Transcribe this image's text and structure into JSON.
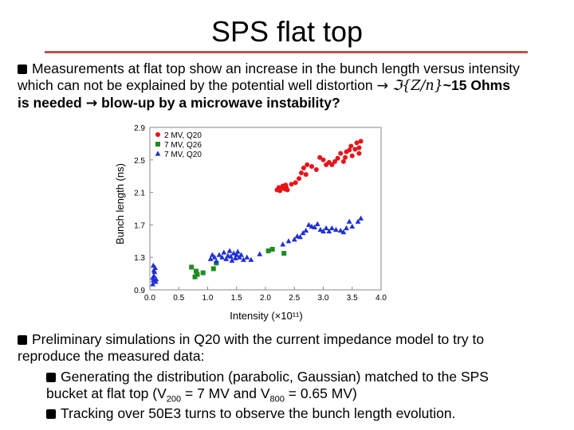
{
  "slide": {
    "title": "SPS flat top",
    "bullet1": {
      "line1": "Measurements at flat top show an increase in the bunch length versus intensity",
      "line2_pre": "which can not be explained by the potential well distortion",
      "arrow": "→",
      "impedance_expr": "ℑ{Z/n}",
      "impedance_val": "~15 Ohms",
      "line3_pre": "is needed",
      "line3_post": "blow-up by a microwave instability?"
    },
    "bullet2": {
      "line1": "Preliminary simulations in Q20 with the current impedance model to try to",
      "line2": "reproduce the measured data:"
    },
    "sub1": {
      "line1": "Generating the distribution (parabolic, Gaussian) matched to the SPS",
      "line2_pre": "bucket at flat top (V",
      "sub_a": "200",
      "line2_mid": " = 7 MV and V",
      "sub_b": "800",
      "line2_post": " = 0.65 MV)"
    },
    "sub2": {
      "line1": "Tracking over 50E3 turns to observe the bunch length evolution."
    }
  },
  "colors": {
    "accent_rule": "#c0504d",
    "series_red": "#e8131a",
    "series_green": "#1e8c1e",
    "series_blue": "#1e2fd6"
  },
  "chart_data": {
    "type": "scatter",
    "xlabel": "Intensity (×10¹¹)",
    "ylabel": "Bunch length (ns)",
    "xlim": [
      0.0,
      4.0
    ],
    "ylim": [
      0.9,
      2.9
    ],
    "xticks": [
      "0.0",
      "0.5",
      "1.0",
      "1.5",
      "2.0",
      "2.5",
      "3.0",
      "3.5",
      "4.0"
    ],
    "yticks": [
      "0.9",
      "1.3",
      "1.7",
      "2.1",
      "2.5",
      "2.9"
    ],
    "legend_position": "top-left",
    "series": [
      {
        "name": "2 MV, Q20",
        "marker": "circle",
        "points": [
          [
            2.2,
            2.13
          ],
          [
            2.23,
            2.16
          ],
          [
            2.25,
            2.12
          ],
          [
            2.28,
            2.15
          ],
          [
            2.3,
            2.18
          ],
          [
            2.32,
            2.16
          ],
          [
            2.34,
            2.14
          ],
          [
            2.36,
            2.16
          ],
          [
            2.38,
            2.13
          ],
          [
            2.35,
            2.19
          ],
          [
            2.45,
            2.2
          ],
          [
            2.52,
            2.22
          ],
          [
            2.58,
            2.27
          ],
          [
            2.62,
            2.34
          ],
          [
            2.66,
            2.4
          ],
          [
            2.7,
            2.32
          ],
          [
            2.72,
            2.44
          ],
          [
            2.8,
            2.42
          ],
          [
            2.88,
            2.38
          ],
          [
            2.94,
            2.53
          ],
          [
            3.0,
            2.5
          ],
          [
            3.05,
            2.44
          ],
          [
            3.1,
            2.47
          ],
          [
            3.15,
            2.44
          ],
          [
            3.2,
            2.48
          ],
          [
            3.25,
            2.52
          ],
          [
            3.3,
            2.58
          ],
          [
            3.35,
            2.48
          ],
          [
            3.38,
            2.53
          ],
          [
            3.4,
            2.6
          ],
          [
            3.45,
            2.62
          ],
          [
            3.48,
            2.67
          ],
          [
            3.5,
            2.55
          ],
          [
            3.55,
            2.63
          ],
          [
            3.58,
            2.71
          ],
          [
            3.62,
            2.65
          ],
          [
            3.65,
            2.73
          ],
          [
            3.62,
            2.58
          ]
        ]
      },
      {
        "name": "7 MV, Q26",
        "marker": "square",
        "points": [
          [
            0.72,
            1.18
          ],
          [
            0.78,
            1.06
          ],
          [
            0.8,
            1.13
          ],
          [
            0.82,
            1.09
          ],
          [
            0.92,
            1.11
          ],
          [
            1.1,
            1.16
          ],
          [
            1.15,
            1.23
          ],
          [
            2.05,
            1.38
          ],
          [
            2.12,
            1.4
          ],
          [
            2.32,
            1.35
          ]
        ]
      },
      {
        "name": "7 MV, Q20",
        "marker": "triangle",
        "points": [
          [
            0.05,
            0.97
          ],
          [
            0.06,
            1.02
          ],
          [
            0.07,
            1.07
          ],
          [
            0.08,
            1.12
          ],
          [
            0.09,
            1.17
          ],
          [
            0.1,
            1.0
          ],
          [
            0.07,
            1.14
          ],
          [
            0.05,
            1.05
          ],
          [
            0.11,
            1.03
          ],
          [
            0.06,
            1.2
          ],
          [
            1.05,
            1.28
          ],
          [
            1.08,
            1.33
          ],
          [
            1.12,
            1.3
          ],
          [
            1.15,
            1.25
          ],
          [
            1.2,
            1.33
          ],
          [
            1.25,
            1.3
          ],
          [
            1.28,
            1.36
          ],
          [
            1.32,
            1.28
          ],
          [
            1.35,
            1.32
          ],
          [
            1.38,
            1.38
          ],
          [
            1.4,
            1.31
          ],
          [
            1.42,
            1.26
          ],
          [
            1.45,
            1.35
          ],
          [
            1.48,
            1.29
          ],
          [
            1.5,
            1.33
          ],
          [
            1.52,
            1.37
          ],
          [
            1.55,
            1.3
          ],
          [
            1.58,
            1.33
          ],
          [
            1.62,
            1.27
          ],
          [
            1.68,
            1.3
          ],
          [
            1.75,
            1.27
          ],
          [
            1.9,
            1.34
          ],
          [
            2.3,
            1.46
          ],
          [
            2.4,
            1.5
          ],
          [
            2.5,
            1.52
          ],
          [
            2.55,
            1.56
          ],
          [
            2.6,
            1.55
          ],
          [
            2.65,
            1.6
          ],
          [
            2.7,
            1.63
          ],
          [
            2.75,
            1.7
          ],
          [
            2.8,
            1.68
          ],
          [
            2.85,
            1.67
          ],
          [
            2.9,
            1.71
          ],
          [
            2.95,
            1.64
          ],
          [
            3.0,
            1.62
          ],
          [
            3.05,
            1.66
          ],
          [
            3.1,
            1.62
          ],
          [
            3.15,
            1.66
          ],
          [
            3.22,
            1.64
          ],
          [
            3.3,
            1.63
          ],
          [
            3.35,
            1.61
          ],
          [
            3.4,
            1.66
          ],
          [
            3.45,
            1.74
          ],
          [
            3.5,
            1.68
          ],
          [
            3.6,
            1.74
          ],
          [
            3.65,
            1.78
          ]
        ]
      }
    ]
  }
}
